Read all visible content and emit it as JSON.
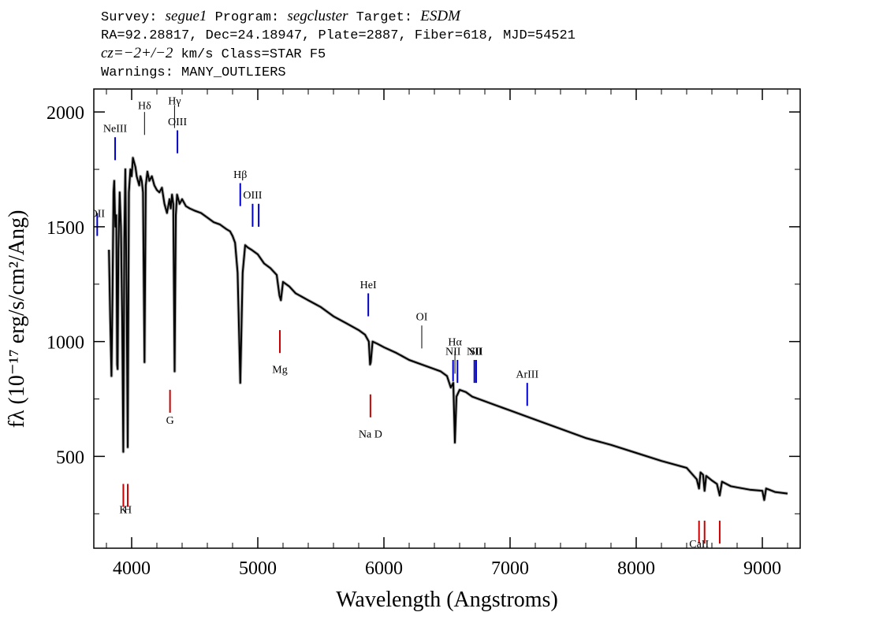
{
  "header": {
    "line1": {
      "survey_label": "Survey:",
      "survey": "segue1",
      "program_label": "Program:",
      "program": "segcluster",
      "target_label": "Target:",
      "target": "ESDM"
    },
    "line2": "RA=92.28817, Dec=24.18947, Plate=2887, Fiber=618, MJD=54521",
    "line3": {
      "cz": "cz=−2+/−2",
      "rest": "km/s Class=STAR F5"
    },
    "line4": "Warnings: MANY_OUTLIERS"
  },
  "chart_data": {
    "type": "line",
    "xlabel": "Wavelength (Angstroms)",
    "ylabel": "fλ (10⁻¹⁷ erg/s/cm²/Ang)",
    "xlim": [
      3700,
      9300
    ],
    "ylim": [
      100,
      2100
    ],
    "x_ticks": [
      4000,
      5000,
      6000,
      7000,
      8000,
      9000
    ],
    "y_ticks": [
      500,
      1000,
      1500,
      2000
    ],
    "grid": false,
    "series": [
      {
        "color": "#000000",
        "x": [
          3820,
          3830,
          3840,
          3848,
          3856,
          3862,
          3870,
          3878,
          3885,
          3889,
          3895,
          3905,
          3915,
          3925,
          3933.7,
          3942,
          3950,
          3960,
          3968.5,
          3978,
          3990,
          4000,
          4010,
          4020,
          4030,
          4040,
          4050,
          4060,
          4070,
          4080,
          4090,
          4101.7,
          4112,
          4125,
          4140,
          4160,
          4180,
          4200,
          4220,
          4240,
          4260,
          4280,
          4300,
          4310,
          4320,
          4330,
          4340.5,
          4350,
          4360,
          4380,
          4400,
          4430,
          4460,
          4500,
          4550,
          4600,
          4650,
          4700,
          4750,
          4780,
          4800,
          4820,
          4840,
          4861.3,
          4880,
          4900,
          4920,
          4950,
          5000,
          5050,
          5100,
          5150,
          5172,
          5183,
          5200,
          5250,
          5300,
          5400,
          5500,
          5600,
          5700,
          5800,
          5850,
          5880,
          5889.9,
          5895.9,
          5910,
          5950,
          6000,
          6100,
          6200,
          6300,
          6400,
          6450,
          6500,
          6530,
          6550,
          6562.8,
          6575,
          6600,
          6650,
          6700,
          6800,
          6900,
          7000,
          7200,
          7400,
          7600,
          7800,
          8000,
          8200,
          8400,
          8480,
          8498,
          8510,
          8530,
          8542,
          8555,
          8600,
          8640,
          8662,
          8680,
          8750,
          8800,
          8900,
          9000,
          9015,
          9030,
          9100,
          9200
        ],
        "y": [
          1400,
          1100,
          850,
          1200,
          1650,
          1700,
          1500,
          1550,
          900,
          880,
          1400,
          1650,
          1500,
          1100,
          520,
          1450,
          1750,
          1200,
          540,
          1650,
          1750,
          1720,
          1800,
          1780,
          1760,
          1720,
          1700,
          1680,
          1720,
          1700,
          1650,
          910,
          1680,
          1740,
          1700,
          1720,
          1680,
          1660,
          1650,
          1670,
          1600,
          1560,
          1620,
          1580,
          1640,
          1600,
          870,
          1550,
          1640,
          1600,
          1620,
          1590,
          1580,
          1570,
          1560,
          1540,
          1520,
          1510,
          1490,
          1480,
          1460,
          1430,
          1300,
          820,
          1300,
          1420,
          1410,
          1400,
          1380,
          1340,
          1320,
          1290,
          1200,
          1180,
          1260,
          1240,
          1210,
          1180,
          1150,
          1110,
          1080,
          1050,
          1030,
          1000,
          900,
          910,
          1000,
          990,
          975,
          950,
          920,
          900,
          880,
          870,
          850,
          800,
          820,
          560,
          760,
          790,
          780,
          760,
          740,
          720,
          700,
          660,
          620,
          580,
          550,
          515,
          480,
          450,
          400,
          360,
          430,
          420,
          350,
          415,
          395,
          380,
          330,
          390,
          370,
          365,
          355,
          350,
          310,
          360,
          345,
          338
        ]
      }
    ],
    "line_markers": [
      {
        "label": "OII",
        "wavelength": 3727,
        "color": "#0000cc",
        "label_y": 1560,
        "top_y": 1560,
        "bottom_y": 1460
      },
      {
        "label": "NeIII",
        "wavelength": 3869,
        "color": "#0000cc",
        "label_y": 1930,
        "top_y": 1890,
        "bottom_y": 1790
      },
      {
        "label": "Hδ",
        "wavelength": 4102,
        "color": "#000000",
        "label_y": 2030,
        "top_y": 2000,
        "bottom_y": 1900
      },
      {
        "label": "Hγ",
        "wavelength": 4340,
        "color": "#000000",
        "label_y": 2050,
        "top_y": 2030,
        "bottom_y": 1930
      },
      {
        "label": "OIII",
        "wavelength": 4363,
        "color": "#0000cc",
        "label_y": 1960,
        "top_y": 1920,
        "bottom_y": 1820
      },
      {
        "label": "Hβ",
        "wavelength": 4861,
        "color": "#0000cc",
        "label_y": 1730,
        "top_y": 1690,
        "bottom_y": 1590
      },
      {
        "label": "OIII",
        "wavelength": 4959,
        "color": "#0000cc",
        "label_y": 1640,
        "top_y": 1600,
        "bottom_y": 1500
      },
      {
        "label": "",
        "wavelength": 5007,
        "color": "#0000cc",
        "top_y": 1600,
        "bottom_y": 1500
      },
      {
        "label": "Mg",
        "wavelength": 5175,
        "color": "#cc0000",
        "label_y": 880,
        "top_y": 1050,
        "bottom_y": 950
      },
      {
        "label": "HeI",
        "wavelength": 5876,
        "color": "#0000cc",
        "label_y": 1250,
        "top_y": 1210,
        "bottom_y": 1110
      },
      {
        "label": "Na D",
        "wavelength": 5893,
        "color": "#cc0000",
        "label_y": 600,
        "top_y": 770,
        "bottom_y": 670
      },
      {
        "label": "OI",
        "wavelength": 6300,
        "color": "#000000",
        "label_y": 1110,
        "top_y": 1070,
        "bottom_y": 970
      },
      {
        "label": "NII",
        "wavelength": 6548,
        "color": "#0000cc",
        "label_y": 960,
        "top_y": 920,
        "bottom_y": 820
      },
      {
        "label": "Hα",
        "wavelength": 6563,
        "color": "#000000",
        "label_y": 1000,
        "top_y": 960,
        "bottom_y": 860
      },
      {
        "label": "",
        "wavelength": 6583,
        "color": "#0000cc",
        "top_y": 920,
        "bottom_y": 820
      },
      {
        "label": "NII",
        "wavelength": 6717,
        "color": "#0000cc",
        "label_y": 960,
        "top_y": 920,
        "bottom_y": 820
      },
      {
        "label": "SII",
        "wavelength": 6731,
        "color": "#0000cc",
        "label_y": 960,
        "top_y": 920,
        "bottom_y": 820
      },
      {
        "label": "ArIII",
        "wavelength": 7136,
        "color": "#0000cc",
        "label_y": 860,
        "top_y": 820,
        "bottom_y": 720
      },
      {
        "label": "K",
        "wavelength": 3934,
        "color": "#cc0000",
        "label_y": 270,
        "top_y": 380,
        "bottom_y": 280
      },
      {
        "label": "H",
        "wavelength": 3969,
        "color": "#cc0000",
        "label_y": 270,
        "top_y": 380,
        "bottom_y": 280
      },
      {
        "label": "CaII",
        "wavelength": 8498,
        "color": "#cc0000",
        "label_y": 120,
        "top_y": 220,
        "bottom_y": 120
      },
      {
        "label": "",
        "wavelength": 8542,
        "color": "#cc0000",
        "top_y": 220,
        "bottom_y": 120
      },
      {
        "label": "",
        "wavelength": 8662,
        "color": "#cc0000",
        "top_y": 220,
        "bottom_y": 120
      },
      {
        "label": "G",
        "wavelength": 4304,
        "color": "#cc0000",
        "label_y": 660,
        "top_y": 790,
        "bottom_y": 690
      }
    ]
  }
}
